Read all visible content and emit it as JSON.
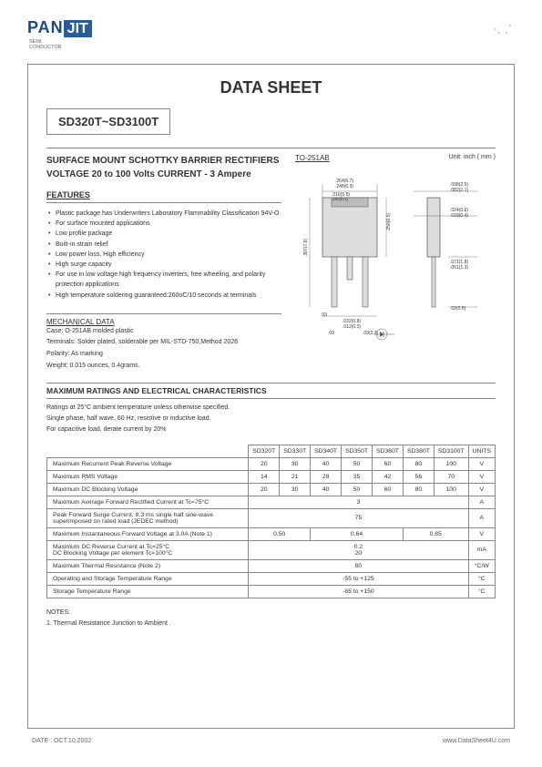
{
  "logo": {
    "brand": "PAN",
    "box": "JIT",
    "sub": "SEMI\nCONDUCTOR"
  },
  "title": "DATA  SHEET",
  "part": "SD320T~SD3100T",
  "subtitle_line1": "SURFACE MOUNT SCHOTTKY BARRIER RECTIFIERS",
  "subtitle_line2": "VOLTAGE 20 to 100 Volts    CURRENT - 3 Ampere",
  "pkg_name": "TO-251AB",
  "unit_label": "Unit: inch ( mm )",
  "features_title": "FEATURES",
  "features": [
    "Plastic package has Underwriters Laboratory Flammability Classification 94V-O",
    "For surface mounted applications",
    "Low profile package",
    "Built-in strain relief",
    "Low power loss, High efficiency",
    "High surge capacity",
    "For use in low voltage high frequency inverters, free wheeling, and polarity protection applications",
    "High temperature soldering guaranteed:260oC/10 seconds at terminals"
  ],
  "mech_title": "MECHANICAL DATA",
  "mech": [
    "Case: O-251AB molded plastic",
    "Terminals: Solder plated, solderable per MIL-STD-750,Method 2026",
    "Polarity:  As marking",
    "Weight: 0.015 ounces, 0.4grams."
  ],
  "max_title": "MAXIMUM RATINGS AND ELECTRICAL CHARACTERISTICS",
  "max_notes": [
    "Ratings at 25°C ambient temperature unless otherwise specified.",
    "Single phase, half wave, 60 Hz, resistive or inductive load.",
    "For capacitive load, derate current by 20%"
  ],
  "table": {
    "cols": [
      "SD320T",
      "SD330T",
      "SD340T",
      "SD350T",
      "SD360T",
      "SD380T",
      "SD3100T",
      "UNITS"
    ],
    "rows": [
      {
        "label": "Maximum Recurrent Peak Reverse Voltage",
        "cells": [
          "20",
          "30",
          "40",
          "50",
          "60",
          "80",
          "100"
        ],
        "unit": "V"
      },
      {
        "label": "Maximum RMS Voltage",
        "cells": [
          "14",
          "21",
          "28",
          "35",
          "42",
          "56",
          "70"
        ],
        "unit": "V"
      },
      {
        "label": "Maximum DC Blocking Voltage",
        "cells": [
          "20",
          "30",
          "40",
          "50",
          "60",
          "80",
          "100"
        ],
        "unit": "V"
      },
      {
        "label": "Maximum Average Forward Rectified Current at Tc=75°C",
        "span": "3",
        "unit": "A"
      },
      {
        "label": "Peak Forward Surge Current, 8.3 ms single half sine-wave superimposed on rated load (JEDEC method)",
        "span": "75",
        "unit": "A"
      },
      {
        "label": "Maximum Instantaneous Forward Voltage at 3.0A (Note 1)",
        "groups": [
          [
            "0.50",
            2
          ],
          [
            "0.64",
            3
          ],
          [
            "0.85",
            2
          ]
        ],
        "unit": "V"
      },
      {
        "label": "Maximum DC Reverse Current at Tc=25°C\nDC Blocking Voltage per element  Tc=100°C",
        "stack": [
          "0.2",
          "20"
        ],
        "unit": "mA"
      },
      {
        "label": "Maximum Thermal Resistance (Note 2)",
        "span": "80",
        "unit": "°C/W"
      },
      {
        "label": "Operating and Storage Temperature Range",
        "span": "-55 to +125",
        "unit": "°C"
      },
      {
        "label": "Storage Temperature Range",
        "span": "-65 to +150",
        "unit": "°C"
      }
    ]
  },
  "notes_title": "NOTES:",
  "notes": [
    "1. Thermal Resistance Junction to Ambient ."
  ],
  "footer_left": "DATE : OCT.10.2002",
  "footer_right": "www.DataSheet4U.com",
  "drawing": {
    "dims": [
      ".264(6.7)",
      ".248(6.3)",
      ".216(5.5)",
      ".200(5.1)",
      ".098(2.5)",
      ".082(2.1)",
      ".024(0.6)",
      ".018(0.4)",
      ".071(1.8)",
      ".051(1.3)",
      ".032(0.8)",
      ".012(0.3)",
      ".02(0.5)",
      ".307(7.8)",
      ".256(6.5)",
      ".09(2.3)",
      ".03",
      ".09"
    ]
  }
}
